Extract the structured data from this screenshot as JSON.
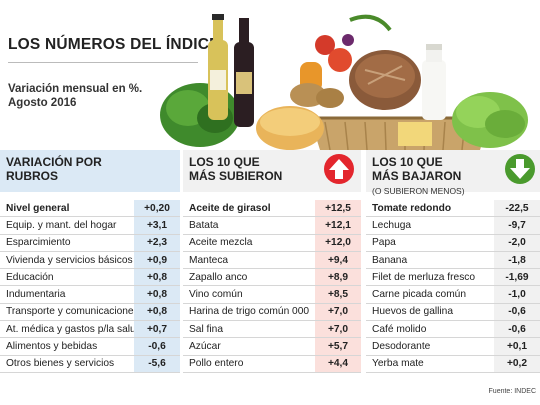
{
  "header": {
    "title": "LOS NÚMEROS DEL ÍNDICE",
    "subtitle_line1": "Variación mensual en %.",
    "subtitle_line2": "Agosto 2016"
  },
  "columns": {
    "rubros": {
      "title_line1": "VARIACIÓN POR",
      "title_line2": "RUBROS",
      "rows": [
        {
          "name": "Nivel general",
          "value": "+0,20"
        },
        {
          "name": "Equip. y mant. del hogar",
          "value": "+3,1"
        },
        {
          "name": "Esparcimiento",
          "value": "+2,3"
        },
        {
          "name": "Vivienda y servicios básicos",
          "value": "+0,9"
        },
        {
          "name": "Educación",
          "value": "+0,8"
        },
        {
          "name": "Indumentaria",
          "value": "+0,8"
        },
        {
          "name": "Transporte y comunicaciones",
          "value": "+0,8"
        },
        {
          "name": "At. médica y gastos p/la salud",
          "value": "+0,7"
        },
        {
          "name": "Alimentos y bebidas",
          "value": "-0,6"
        },
        {
          "name": "Otros bienes y servicios",
          "value": "-5,6"
        }
      ]
    },
    "subieron": {
      "title_line1": "LOS 10 QUE",
      "title_line2": "MÁS SUBIERON",
      "icon": "arrow-up-icon",
      "rows": [
        {
          "name": "Aceite de girasol",
          "value": "+12,5"
        },
        {
          "name": "Batata",
          "value": "+12,1"
        },
        {
          "name": "Aceite mezcla",
          "value": "+12,0"
        },
        {
          "name": "Manteca",
          "value": "+9,4"
        },
        {
          "name": "Zapallo anco",
          "value": "+8,9"
        },
        {
          "name": "Vino común",
          "value": "+8,5"
        },
        {
          "name": "Harina de trigo común 000",
          "value": "+7,0"
        },
        {
          "name": "Sal fina",
          "value": "+7,0"
        },
        {
          "name": "Azúcar",
          "value": "+5,7"
        },
        {
          "name": "Pollo entero",
          "value": "+4,4"
        }
      ]
    },
    "bajaron": {
      "title_line1": "LOS 10 QUE",
      "title_line2": "MÁS BAJARON",
      "note": "(O SUBIERON MENOS)",
      "icon": "arrow-down-icon",
      "rows": [
        {
          "name": "Tomate redondo",
          "value": "-22,5"
        },
        {
          "name": "Lechuga",
          "value": "-9,7"
        },
        {
          "name": "Papa",
          "value": "-2,0"
        },
        {
          "name": "Banana",
          "value": "-1,8"
        },
        {
          "name": "Filet de merluza fresco",
          "value": "-1,69"
        },
        {
          "name": "Carne picada común",
          "value": "-1,0"
        },
        {
          "name": "Huevos de gallina",
          "value": "-0,6"
        },
        {
          "name": "Café molido",
          "value": "-0,6"
        },
        {
          "name": "Desodorante",
          "value": "+0,1"
        },
        {
          "name": "Yerba mate",
          "value": "+0,2"
        }
      ]
    }
  },
  "source": "Fuente: INDEC",
  "colors": {
    "rubros_accent": "#dbe9f5",
    "subieron_accent": "#fbe0dc",
    "up_badge": "#e3262d",
    "down_badge": "#4a9a2d"
  }
}
